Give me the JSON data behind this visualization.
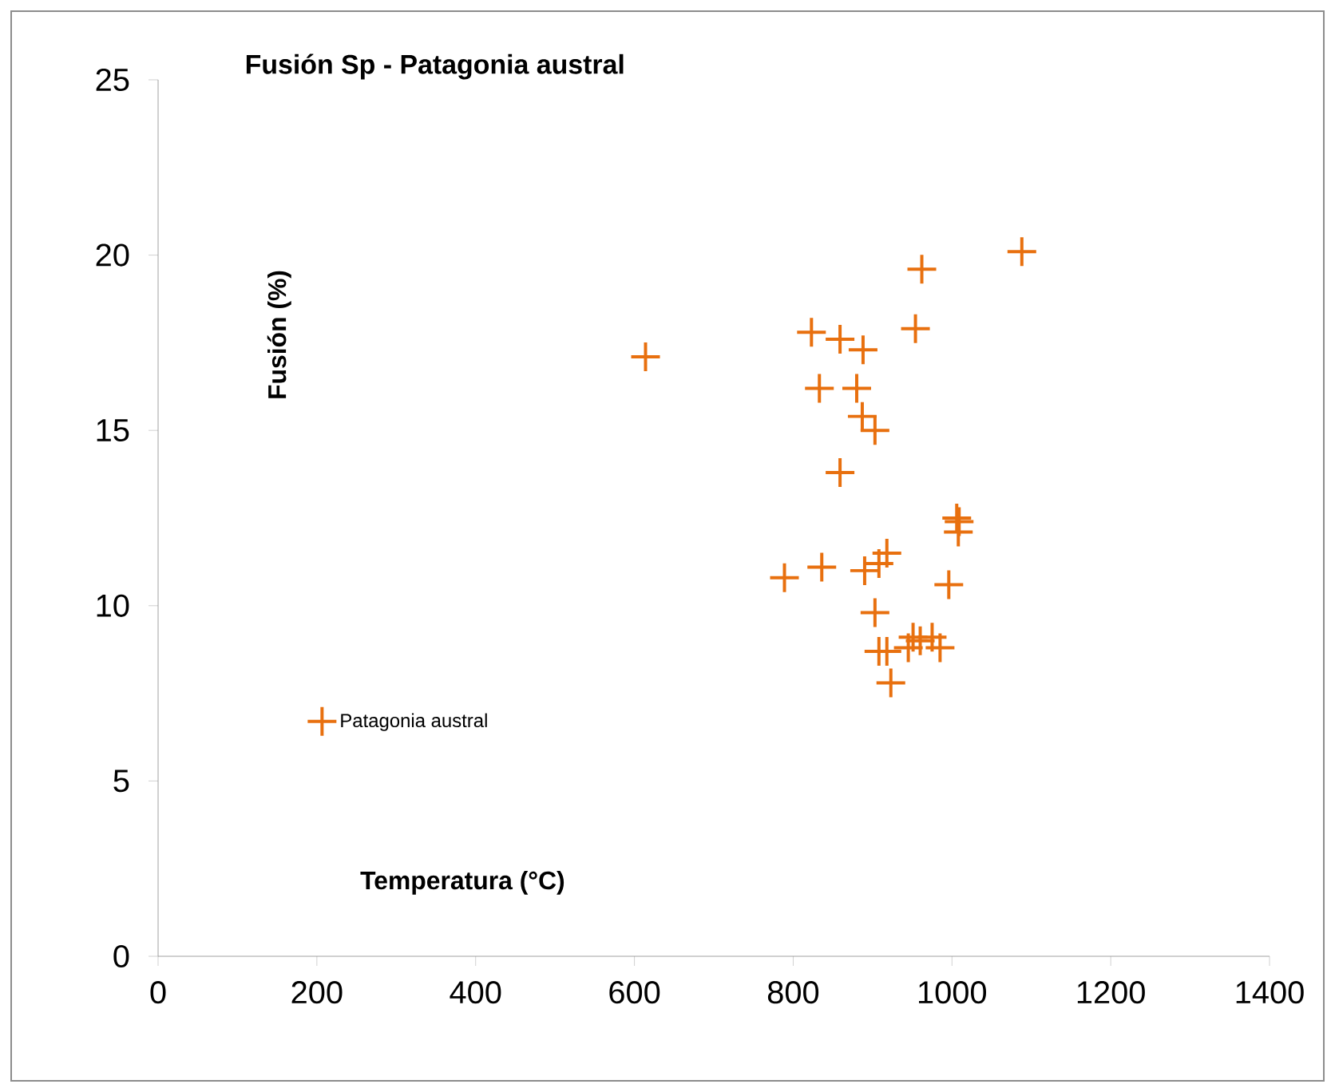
{
  "chart_data": {
    "type": "scatter",
    "title": "Fusión Sp - Patagonia austral",
    "xlabel": "Temperatura (°C)",
    "ylabel": "Fusión (%)",
    "xlim": [
      0,
      1400
    ],
    "xticks": [
      0,
      200,
      400,
      600,
      800,
      1000,
      1200,
      1400
    ],
    "ylim": [
      0,
      25
    ],
    "yticks": [
      0,
      5,
      10,
      15,
      20,
      25
    ],
    "grid": false,
    "legend": "left",
    "marker": "cross",
    "series": [
      {
        "name": "Patagonia austral",
        "color": "#e8700f",
        "x": [
          614,
          1088,
          962,
          954,
          823,
          859,
          888,
          833,
          880,
          887,
          903,
          859,
          1006,
          1009,
          1008,
          789,
          836,
          890,
          908,
          918,
          996,
          903,
          923,
          908,
          918,
          945,
          951,
          960,
          975,
          985
        ],
        "values": [
          17.1,
          20.1,
          19.6,
          17.9,
          17.8,
          17.6,
          17.3,
          16.2,
          16.2,
          15.4,
          15.0,
          13.8,
          12.5,
          12.4,
          12.1,
          10.8,
          11.1,
          11.0,
          11.2,
          11.5,
          10.6,
          9.8,
          7.8,
          8.7,
          8.7,
          8.8,
          9.1,
          9.0,
          9.1,
          8.8
        ]
      }
    ]
  }
}
